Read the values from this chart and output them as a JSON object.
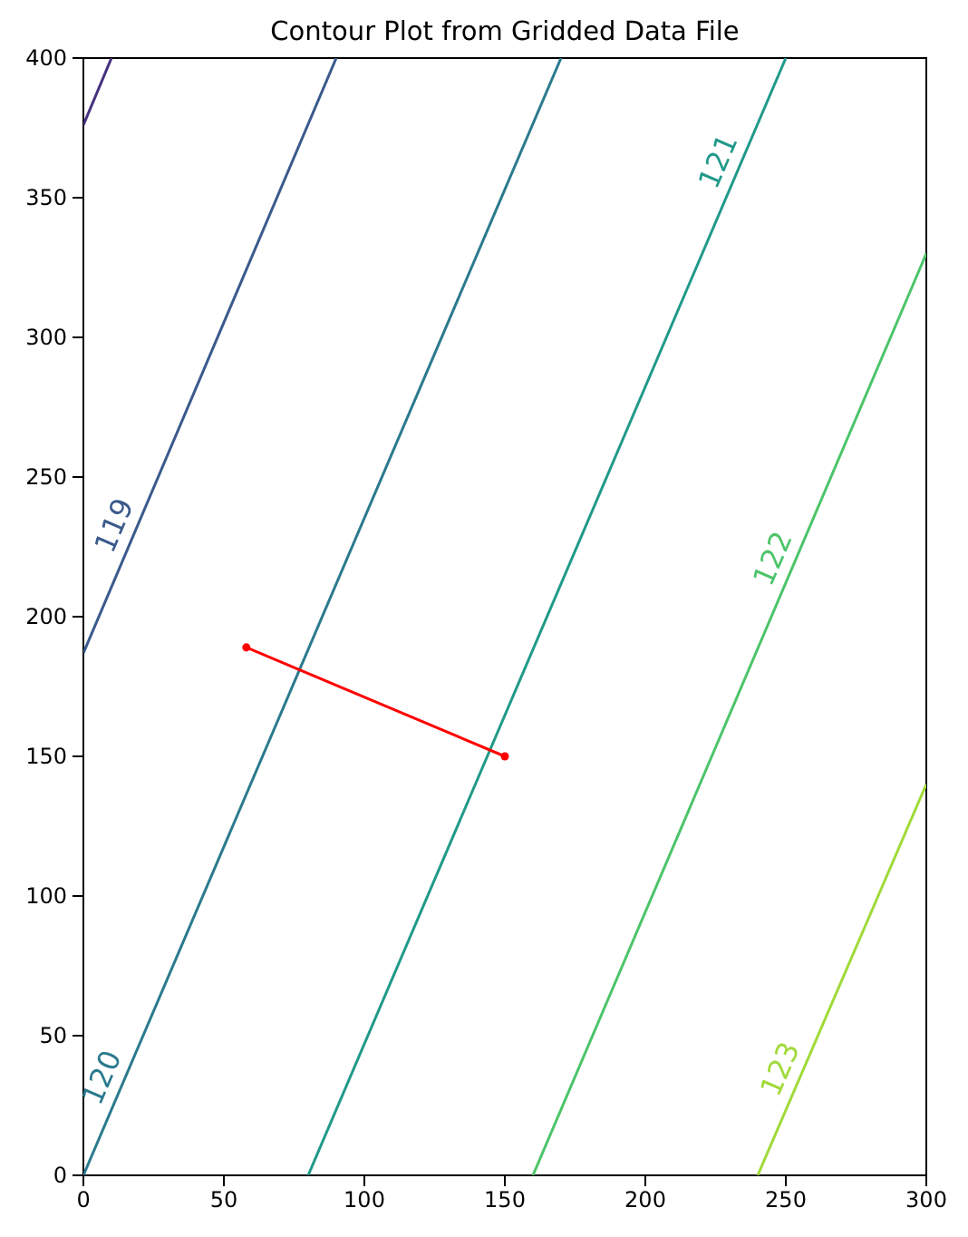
{
  "chart_data": {
    "type": "line",
    "title": "Contour Plot from Gridded Data File",
    "xlim": [
      0,
      300
    ],
    "ylim": [
      0,
      400
    ],
    "xticks": [
      0,
      50,
      100,
      150,
      200,
      250,
      300
    ],
    "yticks": [
      0,
      50,
      100,
      150,
      200,
      250,
      300,
      350,
      400
    ],
    "grid": false,
    "legend": false,
    "line_style": "solid",
    "series": [
      {
        "color": "#46317e",
        "x": [
          0,
          10
        ],
        "values": [
          376,
          400
        ]
      },
      {
        "name": "119",
        "color": "#3b5a8c",
        "x": [
          0,
          90
        ],
        "values": [
          187,
          400
        ]
      },
      {
        "name": "120",
        "color": "#2b7a8d",
        "x": [
          0,
          170
        ],
        "values": [
          0,
          400
        ]
      },
      {
        "name": "121",
        "color": "#21998a",
        "x": [
          80,
          250
        ],
        "values": [
          0,
          400
        ]
      },
      {
        "name": "122",
        "color": "#4dc46a",
        "x": [
          160,
          300
        ],
        "values": [
          0,
          330
        ]
      },
      {
        "name": "123",
        "color": "#a0da39",
        "x": [
          240,
          300
        ],
        "values": [
          0,
          140
        ]
      },
      {
        "color": "#ff0000",
        "marker": "circle",
        "x": [
          58,
          150
        ],
        "values": [
          189,
          150
        ]
      }
    ]
  }
}
